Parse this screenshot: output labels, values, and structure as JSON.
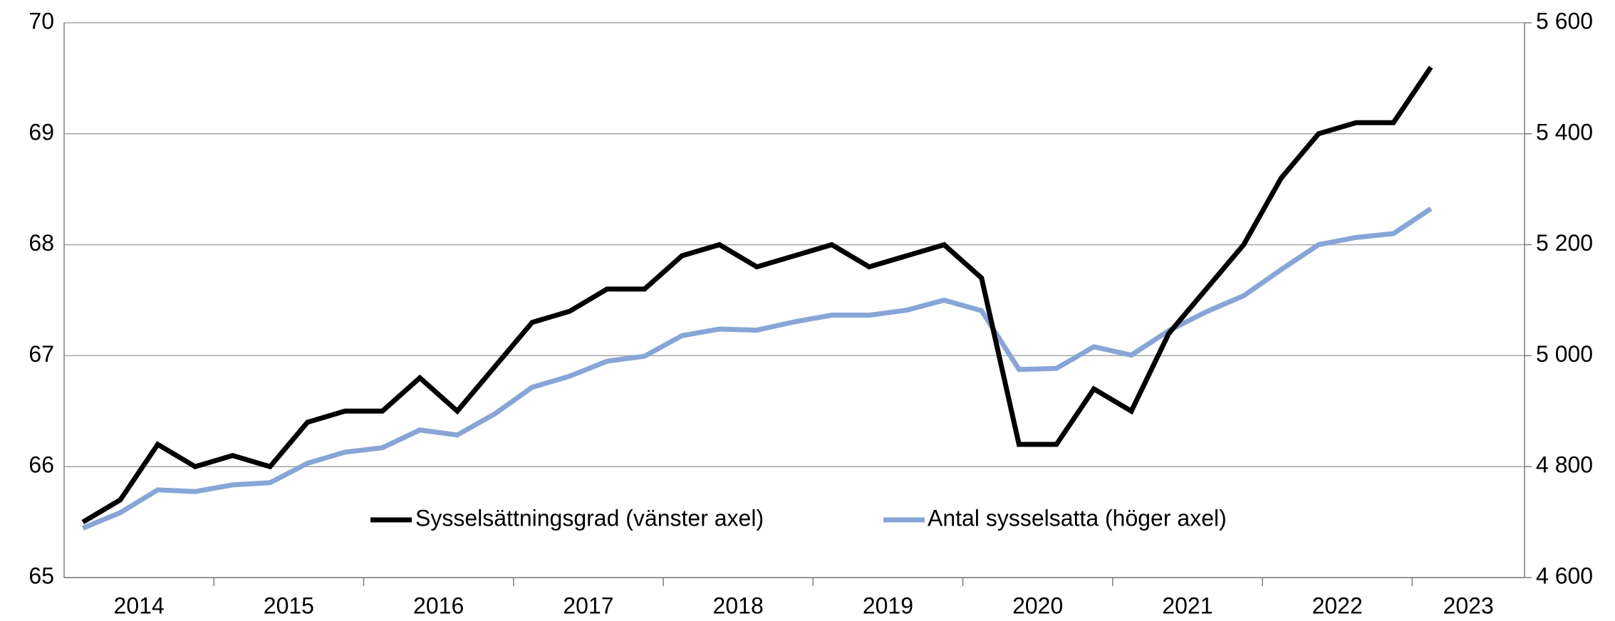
{
  "chart_data": {
    "type": "line",
    "categories": [
      "2014",
      null,
      null,
      null,
      "2015",
      null,
      null,
      null,
      "2016",
      null,
      null,
      null,
      "2017",
      null,
      null,
      null,
      "2018",
      null,
      null,
      null,
      "2019",
      null,
      null,
      null,
      "2020",
      null,
      null,
      null,
      "2021",
      null,
      null,
      null,
      "2022",
      null,
      null,
      null,
      "2023"
    ],
    "series": [
      {
        "name": "Sysselsättningsgrad (vänster axel)",
        "color": "#000000",
        "values": [
          65.5,
          65.7,
          66.2,
          66.0,
          66.1,
          66.0,
          66.4,
          66.5,
          66.5,
          66.8,
          66.5,
          66.9,
          67.3,
          67.4,
          67.6,
          67.6,
          67.9,
          68.0,
          67.8,
          67.9,
          68.0,
          67.8,
          67.9,
          68.0,
          67.7,
          66.2,
          66.2,
          66.7,
          66.5,
          67.2,
          67.6,
          68.0,
          68.6,
          69.0,
          69.1,
          69.1,
          69.6
        ]
      },
      {
        "name": "Antal sysselsatta (höger axel)",
        "color": "#87a5d6",
        "axis": "y2",
        "values": [
          4689,
          4717,
          4758,
          4755,
          4767,
          4771,
          4806,
          4826,
          4834,
          4866,
          4857,
          4895,
          4943,
          4963,
          4990,
          4999,
          5036,
          5048,
          5046,
          5061,
          5073,
          5073,
          5082,
          5100,
          5081,
          4975,
          4977,
          5016,
          5001,
          5045,
          5079,
          5108,
          5155,
          5200,
          5213,
          5220,
          5265
        ]
      }
    ],
    "ylim": [
      65,
      70
    ],
    "yticks": [
      65,
      66,
      67,
      68,
      69,
      70
    ],
    "y2lim": [
      4600,
      5600
    ],
    "y2ticks": [
      {
        "value": 4600,
        "label": "4 600"
      },
      {
        "value": 4800,
        "label": "4 800"
      },
      {
        "value": 5000,
        "label": "5 000"
      },
      {
        "value": 5200,
        "label": "5 200"
      },
      {
        "value": 5400,
        "label": "5 400"
      },
      {
        "value": 5600,
        "label": "5 600"
      }
    ],
    "grid": true,
    "legend": "bottom"
  }
}
